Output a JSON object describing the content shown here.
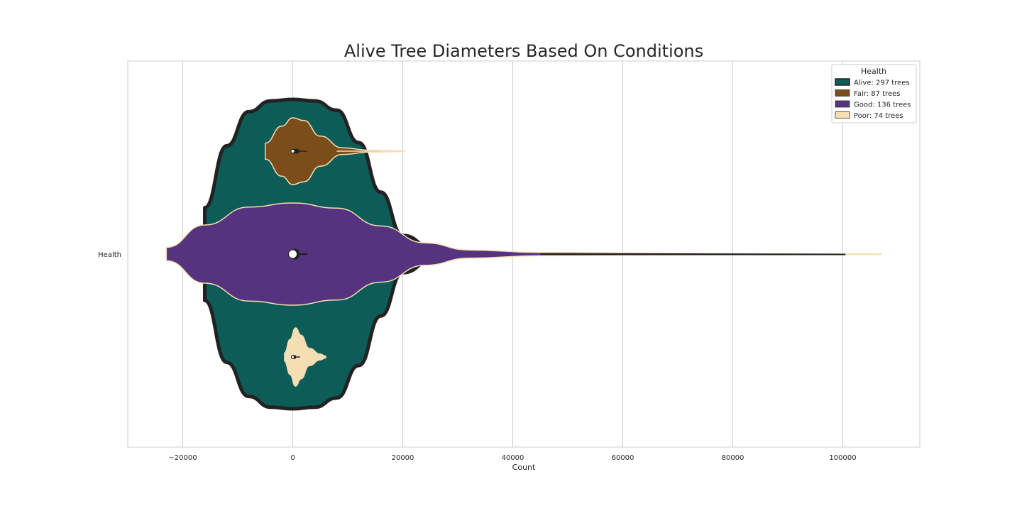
{
  "chart_data": {
    "type": "violin",
    "title": "Alive Tree Diameters Based On Conditions",
    "xlabel": "Count",
    "ylabel": "",
    "y_category": "Health",
    "xlim": [
      -30000,
      114000
    ],
    "x_ticks": [
      -20000,
      0,
      20000,
      40000,
      60000,
      80000,
      100000
    ],
    "x_tick_labels": [
      "−20000",
      "0",
      "20000",
      "40000",
      "60000",
      "80000",
      "100000"
    ],
    "grid": true,
    "legend_title": "Health",
    "legend_position": "top-right",
    "series": [
      {
        "name": "Alive: 297 trees",
        "color": "#0e5c57",
        "edge": "#222222",
        "profile": [
          [
            -16000,
            0.3
          ],
          [
            -12000,
            0.7
          ],
          [
            -8000,
            0.92
          ],
          [
            -4000,
            0.99
          ],
          [
            0,
            1.0
          ],
          [
            4000,
            0.99
          ],
          [
            8000,
            0.93
          ],
          [
            12000,
            0.72
          ],
          [
            16000,
            0.4
          ],
          [
            20000,
            0.12
          ],
          [
            26000,
            0.02
          ]
        ]
      },
      {
        "name": "Fair: 87 trees",
        "color": "#7b4d1b",
        "edge": "#f5deb3",
        "profile": [
          [
            -5000,
            0.24
          ],
          [
            -2000,
            0.75
          ],
          [
            0,
            1.0
          ],
          [
            2000,
            0.92
          ],
          [
            5000,
            0.45
          ],
          [
            9000,
            0.1
          ],
          [
            14000,
            0.03
          ],
          [
            20000,
            0.01
          ]
        ]
      },
      {
        "name": "Good: 136 trees",
        "color": "#55337e",
        "edge": "#f5deb3",
        "profile": [
          [
            -23000,
            0.13
          ],
          [
            -16000,
            0.57
          ],
          [
            -8000,
            0.92
          ],
          [
            0,
            1.0
          ],
          [
            8000,
            0.9
          ],
          [
            16000,
            0.55
          ],
          [
            24000,
            0.22
          ],
          [
            32000,
            0.08
          ],
          [
            45000,
            0.03
          ],
          [
            70000,
            0.012
          ],
          [
            100000,
            0.004
          ],
          [
            107000,
            0.001
          ]
        ]
      },
      {
        "name": "Poor: 74 trees",
        "color": "#f5deb3",
        "edge": "#f5deb3",
        "profile": [
          [
            -1500,
            0.14
          ],
          [
            -500,
            0.6
          ],
          [
            500,
            1.0
          ],
          [
            1500,
            0.75
          ],
          [
            3000,
            0.3
          ],
          [
            5000,
            0.1
          ],
          [
            6000,
            0.03
          ]
        ]
      }
    ],
    "medians": [
      {
        "series": "Fair: 87 trees",
        "median": 0,
        "q1": -300,
        "q3": 1200
      },
      {
        "series": "Good: 136 trees",
        "median": 0,
        "q1": -300,
        "q3": 1200
      },
      {
        "series": "Poor: 74 trees",
        "median": 0,
        "q1": -300,
        "q3": 600
      }
    ]
  }
}
